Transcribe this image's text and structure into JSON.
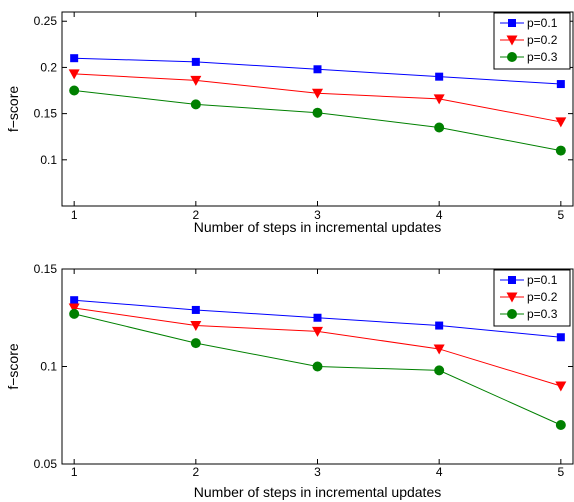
{
  "chart_data": [
    {
      "type": "line",
      "x": [
        1,
        2,
        3,
        4,
        5
      ],
      "xticks": [
        "1",
        "2",
        "3",
        "4",
        "5"
      ],
      "xlabel": "Number of steps in incremental updates",
      "ylabel": "f−score",
      "xlim": [
        0.9,
        5.1
      ],
      "ylim": [
        0.05,
        0.26
      ],
      "yticks": [
        0.1,
        0.15,
        0.2,
        0.25
      ],
      "ytick_labels": [
        "0.1",
        "0.15",
        "0.2",
        "0.25"
      ],
      "grid": false,
      "legend_position": "top-right",
      "series": [
        {
          "name": "p=0.1",
          "values": [
            0.21,
            0.206,
            0.198,
            0.19,
            0.182
          ],
          "color": "#0000ff",
          "marker": "square"
        },
        {
          "name": "p=0.2",
          "values": [
            0.193,
            0.186,
            0.172,
            0.166,
            0.141
          ],
          "color": "#ff0000",
          "marker": "triangle-down"
        },
        {
          "name": "p=0.3",
          "values": [
            0.175,
            0.16,
            0.151,
            0.135,
            0.11
          ],
          "color": "#008000",
          "marker": "circle"
        }
      ]
    },
    {
      "type": "line",
      "x": [
        1,
        2,
        3,
        4,
        5
      ],
      "xticks": [
        "1",
        "2",
        "3",
        "4",
        "5"
      ],
      "xlabel": "Number of steps in incremental updates",
      "ylabel": "f−score",
      "xlim": [
        0.9,
        5.1
      ],
      "ylim": [
        0.05,
        0.15
      ],
      "yticks": [
        0.05,
        0.1,
        0.15
      ],
      "ytick_labels": [
        "0.05",
        "0.1",
        "0.15"
      ],
      "grid": false,
      "legend_position": "top-right",
      "series": [
        {
          "name": "p=0.1",
          "values": [
            0.134,
            0.129,
            0.125,
            0.121,
            0.115
          ],
          "color": "#0000ff",
          "marker": "square"
        },
        {
          "name": "p=0.2",
          "values": [
            0.13,
            0.121,
            0.118,
            0.109,
            0.09
          ],
          "color": "#ff0000",
          "marker": "triangle-down"
        },
        {
          "name": "p=0.3",
          "values": [
            0.127,
            0.112,
            0.1,
            0.098,
            0.07
          ],
          "color": "#008000",
          "marker": "circle"
        }
      ]
    }
  ]
}
